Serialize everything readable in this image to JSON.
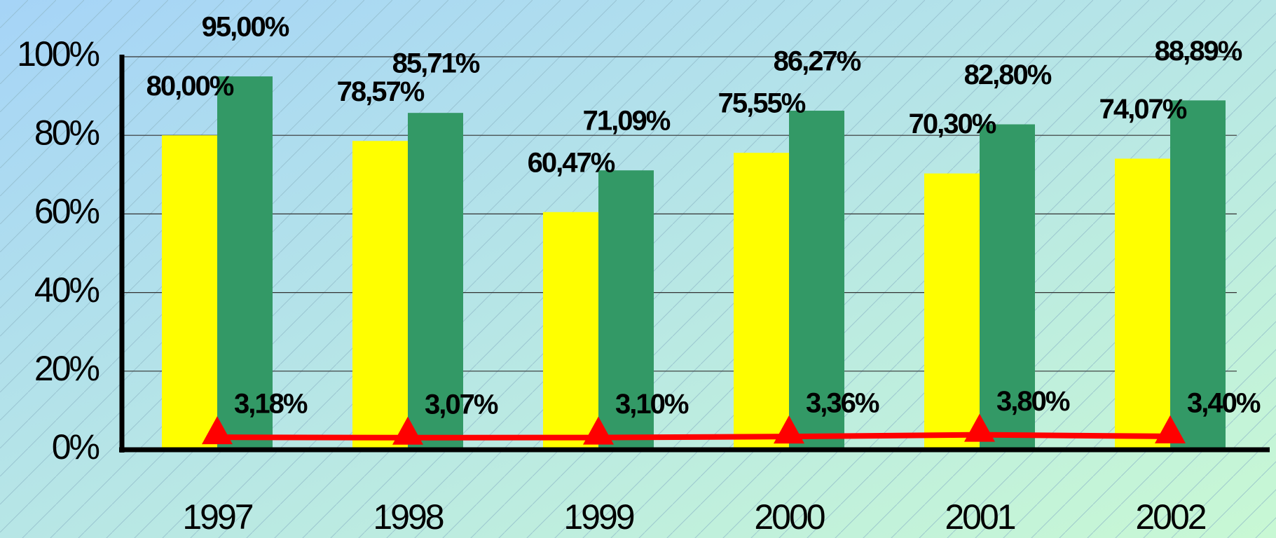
{
  "chart_data": {
    "type": "bar",
    "categories": [
      "1997",
      "1998",
      "1999",
      "2000",
      "2001",
      "2002"
    ],
    "series": [
      {
        "type": "bar",
        "color": "#ffff00",
        "values": [
          80.0,
          78.57,
          60.47,
          75.55,
          70.3,
          74.07
        ],
        "value_labels": [
          "80,00%",
          "78,57%",
          "60,47%",
          "75,55%",
          "70,30%",
          "74,07%"
        ]
      },
      {
        "type": "bar",
        "color": "#339966",
        "values": [
          95.0,
          85.71,
          71.09,
          86.27,
          82.8,
          88.89
        ],
        "value_labels": [
          "95,00%",
          "85,71%",
          "71,09%",
          "86,27%",
          "82,80%",
          "88,89%"
        ]
      },
      {
        "type": "line",
        "color": "#ff0000",
        "values": [
          3.18,
          3.07,
          3.1,
          3.36,
          3.8,
          3.4
        ],
        "value_labels": [
          "3,18%",
          "3,07%",
          "3,10%",
          "3,36%",
          "3,80%",
          "3,40%"
        ]
      }
    ],
    "ylim": [
      0,
      100
    ],
    "yticks": [
      {
        "value": 0,
        "label": "0%"
      },
      {
        "value": 20,
        "label": "20%"
      },
      {
        "value": 40,
        "label": "40%"
      },
      {
        "value": 60,
        "label": "60%"
      },
      {
        "value": 80,
        "label": "80%"
      },
      {
        "value": 100,
        "label": "100%"
      }
    ],
    "grid": true
  }
}
